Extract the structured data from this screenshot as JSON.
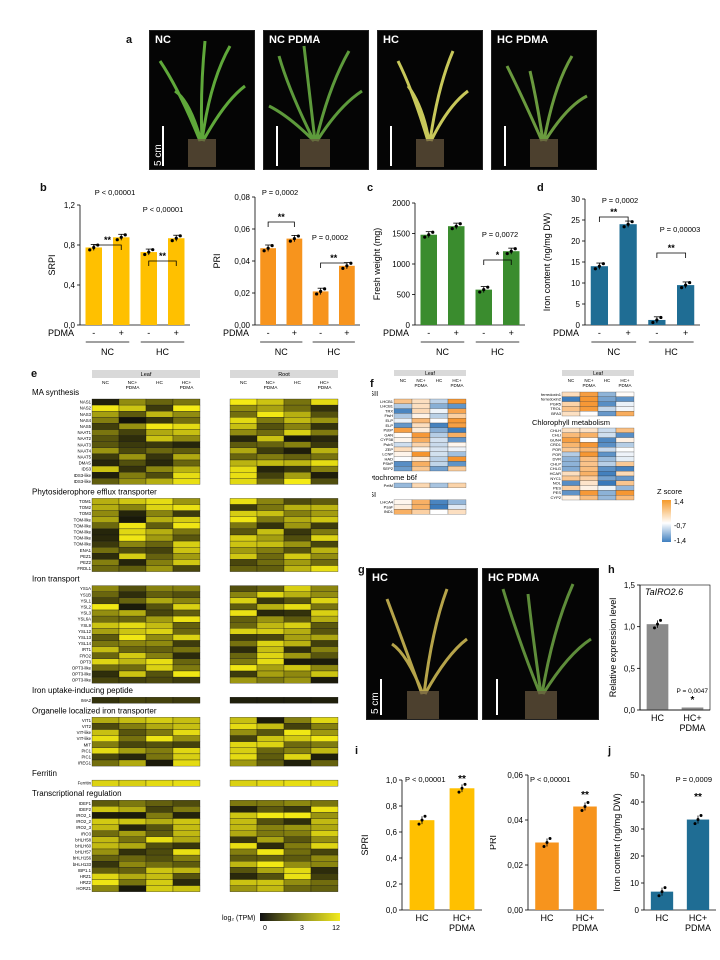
{
  "panels": {
    "a": "a",
    "b": "b",
    "c": "c",
    "d": "d",
    "e": "e",
    "f": "f",
    "g": "g",
    "h": "h",
    "i": "i",
    "j": "j"
  },
  "photos_a": [
    "NC",
    "NC PDMA",
    "HC",
    "HC PDMA"
  ],
  "photos_g": [
    "HC",
    "HC PDMA"
  ],
  "scale_text": "5 cm",
  "colors": {
    "yellow": "#ffc000",
    "orange": "#f7941d",
    "green": "#3a8c2e",
    "blue": "#1f6d94",
    "gray": "#8a8a8a"
  },
  "chart_data": [
    {
      "id": "b1",
      "type": "bar",
      "ylabel": "SRPI",
      "yticks": [
        "0,0",
        "0,4",
        "0,8",
        "1,2"
      ],
      "ylim": [
        0,
        1.3
      ],
      "values": [
        0.84,
        0.95,
        0.79,
        0.94
      ],
      "signs": [
        "-",
        "+",
        "-",
        "+"
      ],
      "pdma_label": "PDMA",
      "groups": [
        "NC",
        "HC"
      ],
      "annotations": [
        "P < 0,00001",
        "**",
        "P < 0,00001",
        "**"
      ]
    },
    {
      "id": "b2",
      "type": "bar",
      "ylabel": "PRI",
      "yticks": [
        "0,00",
        "0,02",
        "0,04",
        "0,06",
        "0,08"
      ],
      "ylim": [
        0,
        0.08
      ],
      "values": [
        0.048,
        0.054,
        0.021,
        0.037
      ],
      "signs": [
        "-",
        "+",
        "-",
        "+"
      ],
      "pdma_label": "PDMA",
      "groups": [
        "NC",
        "HC"
      ],
      "annotations": [
        "P = 0,0002",
        "**",
        "P = 0,0002",
        "**"
      ]
    },
    {
      "id": "c",
      "type": "bar",
      "ylabel": "Fresh weight (mg)",
      "yticks": [
        "0",
        "500",
        "1000",
        "1500",
        "2000"
      ],
      "ylim": [
        0,
        2000
      ],
      "values": [
        1480,
        1620,
        580,
        1210
      ],
      "signs": [
        "-",
        "+",
        "-",
        "+"
      ],
      "pdma_label": "PDMA",
      "groups": [
        "NC",
        "HC"
      ],
      "annotations": [
        "P = 0,0072",
        "*"
      ]
    },
    {
      "id": "d",
      "type": "bar",
      "ylabel": "Iron content (ng/mg DW)",
      "yticks": [
        "0",
        "5",
        "10",
        "15",
        "20",
        "25",
        "30"
      ],
      "ylim": [
        0,
        30
      ],
      "values": [
        14,
        24,
        1.2,
        9.5
      ],
      "signs": [
        "-",
        "+",
        "-",
        "+"
      ],
      "pdma_label": "PDMA",
      "groups": [
        "NC",
        "HC"
      ],
      "annotations": [
        "P = 0,0002",
        "**",
        "P = 0,00003",
        "**"
      ]
    },
    {
      "id": "h",
      "type": "bar",
      "ylabel": "Relative expression level",
      "title": "TaIRO2.6",
      "yticks": [
        "0,0",
        "0,5",
        "1,0",
        "1,5"
      ],
      "ylim": [
        0,
        1.5
      ],
      "values": [
        1.03,
        0.03
      ],
      "categories": [
        "HC",
        "HC+ PDMA"
      ],
      "annotations": [
        "P = 0,0047",
        "*"
      ]
    },
    {
      "id": "i1",
      "type": "bar",
      "ylabel": "SPRI",
      "yticks": [
        "0,0",
        "0,2",
        "0,4",
        "0,6",
        "0,8",
        "1,0"
      ],
      "ylim": [
        0,
        1.1
      ],
      "values": [
        0.76,
        1.03
      ],
      "categories": [
        "HC",
        "HC+ PDMA"
      ],
      "annotations": [
        "P < 0,00001",
        "**"
      ]
    },
    {
      "id": "i2",
      "type": "bar",
      "ylabel": "PRI",
      "yticks": [
        "0,00",
        "0,02",
        "0,04",
        "0,06"
      ],
      "ylim": [
        0,
        0.06
      ],
      "values": [
        0.03,
        0.046
      ],
      "categories": [
        "HC",
        "HC+ PDMA"
      ],
      "annotations": [
        "P < 0,00001",
        "**"
      ]
    },
    {
      "id": "j",
      "type": "bar",
      "ylabel": "Iron content (ng/mg DW)",
      "yticks": [
        "0",
        "10",
        "20",
        "30",
        "40",
        "50"
      ],
      "ylim": [
        0,
        50
      ],
      "values": [
        6.8,
        33.5
      ],
      "categories": [
        "HC",
        "HC+ PDMA"
      ],
      "annotations": [
        "P = 0,0009",
        "**"
      ]
    }
  ],
  "heatmap_e": {
    "leaf_label": "Leaf",
    "root_label": "Root",
    "conditions": [
      "NC",
      "NC+ PDMA",
      "HC",
      "HC+ PDMA"
    ],
    "sections": [
      {
        "title": "MA synthesis",
        "genes": [
          "NAS1",
          "NAS2",
          "NAS3",
          "NAS4",
          "NAS5",
          "NAAT1",
          "NAAT2",
          "NAAT3",
          "NAAT4",
          "NAAT5",
          "DMAS",
          "IDS3",
          "IDS3-like",
          "IDS3-like"
        ]
      },
      {
        "title": "Phytosiderophore efflux transporter",
        "genes": [
          "TOM1",
          "TOM2",
          "TOM3",
          "TOM-like",
          "TOM-like",
          "TOM-like",
          "TOM-like",
          "TOM-like",
          "ENA1",
          "PEZ1",
          "PEZ2",
          "FRDL1"
        ]
      },
      {
        "title": "Iron transport",
        "genes": [
          "YS1A",
          "YS1B",
          "YSL1",
          "YSL2",
          "YSL3",
          "YSL6A",
          "YSL9",
          "YSL12",
          "YSL13",
          "YSL14",
          "IRT1",
          "FRO2",
          "OPT3",
          "OPT3-like",
          "OPT3-like",
          "OPT3-like"
        ]
      },
      {
        "title": "Iron uptake-inducing peptide",
        "genes": [
          "IMA2"
        ]
      },
      {
        "title": "Organelle localized iron transporter",
        "genes": [
          "VIT1",
          "VIT2",
          "VIT-like",
          "VIT-like",
          "MIT",
          "PIC1",
          "PIC1",
          "IREG1"
        ]
      },
      {
        "title": "Ferritin",
        "genes": [
          "Ferritin"
        ]
      },
      {
        "title": "Transcriptional regulation",
        "genes": [
          "IDEF1",
          "IDEF2",
          "IRO2_1",
          "IRO2_2",
          "IRO2_3",
          "IRO3",
          "bHLH58",
          "bHLH60",
          "bHLH57",
          "bHLH156",
          "bHLH133",
          "IBP1.1",
          "HRZ1",
          "HRZ2",
          "HORZ1"
        ]
      }
    ],
    "legend": {
      "title": "log₂ (TPM)",
      "ticks": [
        "0",
        "3",
        "12"
      ]
    }
  },
  "heatmap_f": {
    "leaf_label": "Leaf",
    "conditions": [
      "NC",
      "NC+ PDMA",
      "HC",
      "HC+ PDMA"
    ],
    "left_sections": [
      {
        "title": "PSII",
        "genes": [
          "LHCB1",
          "LHCB1",
          "TRX",
          "FtsH",
          "ELP",
          "ELP",
          "PsbP",
          "GAN",
          "CYP38",
          "PsbS",
          "ZEP",
          "LCNP",
          "HAD",
          "PSbP",
          "SEP2"
        ]
      },
      {
        "title": "Cytochrome b6f",
        "genes": [
          "PetM"
        ]
      },
      {
        "title": "PSI",
        "genes": [
          "LHCA4",
          "PsaF",
          "IND1"
        ]
      }
    ],
    "right_sections": [
      {
        "title": "",
        "genes": [
          "ferredoxin1",
          "ferredoxin2",
          "PGR5",
          "TROL",
          "BFA3"
        ]
      },
      {
        "title": "Chlorophyll metabolism",
        "genes": [
          "CHLH",
          "CHLI",
          "GUN4",
          "CRD1",
          "POR",
          "POR",
          "DVR",
          "CHLP",
          "CHLG",
          "HCAR",
          "NYC1",
          "NOL",
          "PES",
          "PES",
          "CYP2"
        ]
      }
    ],
    "legend": {
      "title": "Z score",
      "ticks": [
        "1,4",
        "-0,7",
        "-1,4"
      ]
    }
  }
}
